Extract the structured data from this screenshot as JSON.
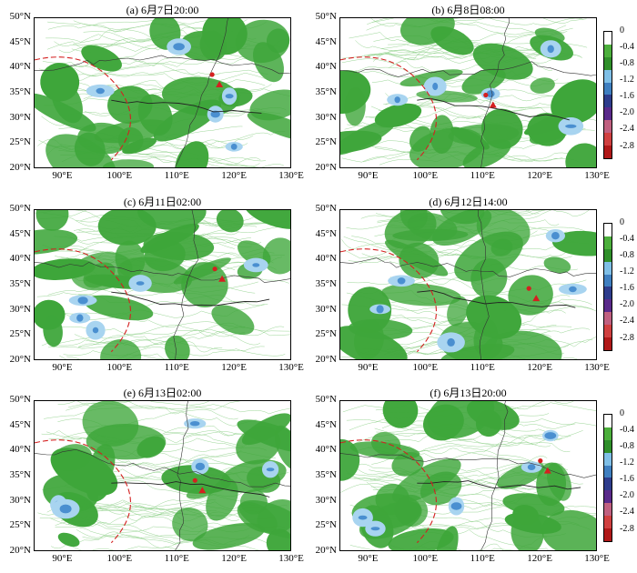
{
  "panels": [
    {
      "title": "(a) 6月7日20:00",
      "map": "map-a"
    },
    {
      "title": "(b) 6月8日08:00",
      "map": "map-b"
    },
    {
      "title": "(c) 6月11日02:00",
      "map": "map-c"
    },
    {
      "title": "(d) 6月12日14:00",
      "map": "map-d"
    },
    {
      "title": "(e) 6月13日02:00",
      "map": "map-e"
    },
    {
      "title": "(f) 6月13日20:00",
      "map": "map-f"
    }
  ],
  "y_ticks": [
    "50°N",
    "45°N",
    "40°N",
    "35°N",
    "30°N",
    "25°N",
    "20°N"
  ],
  "x_ticks": [
    "90°E",
    "100°E",
    "110°E",
    "120°E",
    "130°E"
  ],
  "colorbar": {
    "ticks": [
      "0",
      "-0.4",
      "-0.8",
      "-1.2",
      "-1.6",
      "-2.0",
      "-2.4",
      "-2.8"
    ],
    "colors": [
      "#ffffff",
      "#4caf3c",
      "#2f8f2a",
      "#7fbfe6",
      "#3f7fc0",
      "#2e3c8c",
      "#5a2a8a",
      "#c06080",
      "#d04040",
      "#b01818"
    ]
  },
  "colors": {
    "green": "#3ea63a",
    "light_green": "#8fd08a",
    "blue": "#4a8fd0",
    "light_blue": "#a8d4f0",
    "red": "#d42020"
  }
}
